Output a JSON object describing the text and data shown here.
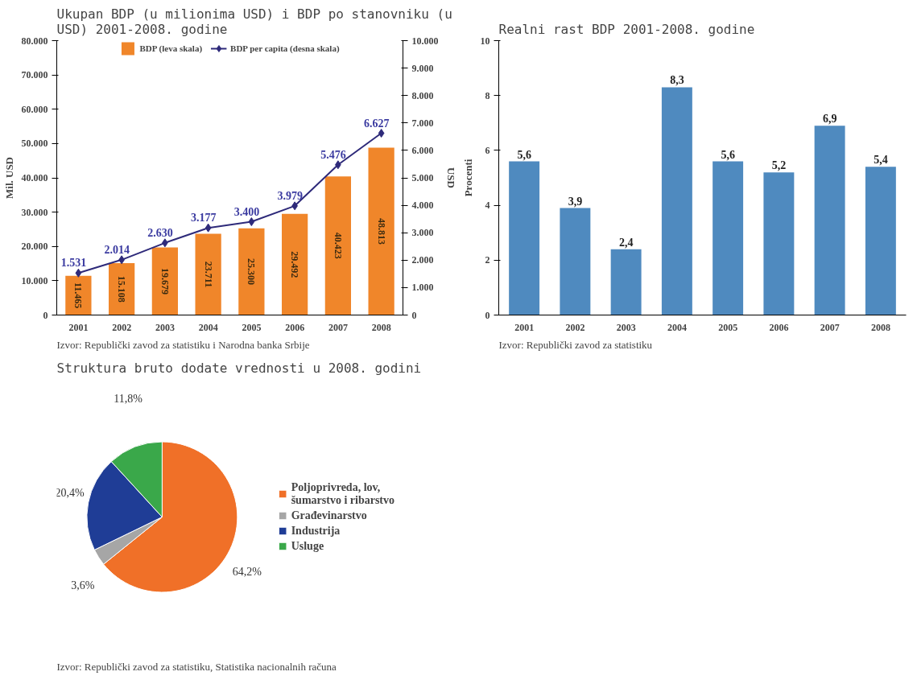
{
  "chart_data": [
    {
      "type": "bar",
      "title": "Ukupan BDP (u milionima USD) i BDP po stanovniku (u USD) 2001-2008. godine",
      "ylabel": "Mil. USD",
      "y2label": "USD",
      "categories": [
        "2001",
        "2002",
        "2003",
        "2004",
        "2005",
        "2006",
        "2007",
        "2008"
      ],
      "series": [
        {
          "name": "BDP (leva skala)",
          "type": "bar",
          "color": "#f0862a",
          "values": [
            11465,
            15108,
            19679,
            23711,
            25300,
            29492,
            40423,
            48813
          ],
          "value_labels": [
            "11.465",
            "15.108",
            "19.679",
            "23.711",
            "25.300",
            "29.492",
            "40.423",
            "48.813"
          ]
        },
        {
          "name": "BDP per capita (desna skala)",
          "type": "line",
          "axis": "y2",
          "color": "#2e2a7a",
          "marker": "diamond",
          "values": [
            1531,
            2014,
            2630,
            3177,
            3400,
            3979,
            5476,
            6627
          ],
          "value_labels": [
            "1.531",
            "2.014",
            "2.630",
            "3.177",
            "3.400",
            "3.979",
            "5.476",
            "6.627"
          ]
        }
      ],
      "ylim": [
        0,
        80000
      ],
      "yticks": [
        {
          "value": 0,
          "label": "0"
        },
        {
          "value": 10000,
          "label": "10.000"
        },
        {
          "value": 20000,
          "label": "20.000"
        },
        {
          "value": 30000,
          "label": "30.000"
        },
        {
          "value": 40000,
          "label": "40.000"
        },
        {
          "value": 50000,
          "label": "50.000"
        },
        {
          "value": 60000,
          "label": "60.000"
        },
        {
          "value": 70000,
          "label": "70.000"
        },
        {
          "value": 80000,
          "label": "80.000"
        }
      ],
      "y2lim": [
        0,
        10000
      ],
      "y2ticks": [
        {
          "value": 0,
          "label": "0"
        },
        {
          "value": 1000,
          "label": "1.000"
        },
        {
          "value": 2000,
          "label": "2.000"
        },
        {
          "value": 3000,
          "label": "3.000"
        },
        {
          "value": 4000,
          "label": "4.000"
        },
        {
          "value": 5000,
          "label": "5.000"
        },
        {
          "value": 6000,
          "label": "6.000"
        },
        {
          "value": 7000,
          "label": "7.000"
        },
        {
          "value": 8000,
          "label": "8.000"
        },
        {
          "value": 9000,
          "label": "9.000"
        },
        {
          "value": 10000,
          "label": "10.000"
        }
      ],
      "legend": "top",
      "grid": false,
      "annotations": [
        "Izvor: Republički zavod za statistiku i Narodna banka Srbije"
      ]
    },
    {
      "type": "bar",
      "title": "Realni rast BDP 2001-2008. godine",
      "ylabel": "Procenti",
      "categories": [
        "2001",
        "2002",
        "2003",
        "2004",
        "2005",
        "2006",
        "2007",
        "2008"
      ],
      "values": [
        5.6,
        3.9,
        2.4,
        8.3,
        5.6,
        5.2,
        6.9,
        5.4
      ],
      "color": "#4f8abf",
      "value_labels": [
        "5,6",
        "3,9",
        "2,4",
        "8,3",
        "5,6",
        "5,2",
        "6,9",
        "5,4"
      ],
      "ylim": [
        0,
        10
      ],
      "yticks": [
        0,
        2,
        4,
        6,
        8,
        10
      ],
      "grid": false,
      "annotations": [
        "Izvor: Republički zavod za statistiku"
      ]
    },
    {
      "type": "pie",
      "title": "Struktura bruto dodate vrednosti u 2008. godini",
      "categories": [
        "Poljoprivreda, lov,\nšumarstvo i ribarstvo",
        "Građevinarstvo",
        "Industrija",
        "Usluge"
      ],
      "values": [
        64.2,
        3.6,
        20.4,
        11.8
      ],
      "colors": [
        "#f07028",
        "#a6a6a6",
        "#1f3d96",
        "#3aa84a"
      ],
      "value_labels": [
        "64,2%",
        "3,6%",
        "20,4%",
        "11,8%"
      ],
      "legend": "right",
      "annotations": [
        "Izvor: Republički zavod za statistiku, Statistika nacionalnih računa"
      ]
    }
  ]
}
